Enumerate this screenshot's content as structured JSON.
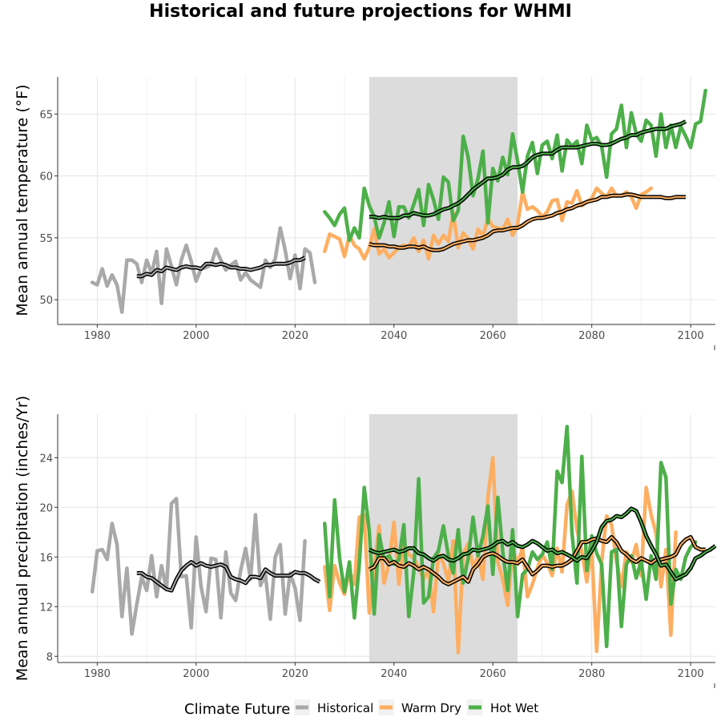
{
  "chart_data": {
    "title": "Historical and future projections for WHMI",
    "panels": [
      {
        "type": "line",
        "ylabel": "Mean annual temperature (°F)",
        "xlim": [
          1972,
          2105
        ],
        "ylim": [
          48,
          68
        ],
        "xticks": [
          1980,
          2000,
          2020,
          2040,
          2060,
          2080,
          2100
        ],
        "yticks": [
          50,
          55,
          60,
          65
        ],
        "highlight_range": [
          2035,
          2065
        ],
        "series": [
          {
            "name": "Historical",
            "x_start": 1979,
            "values": [
              51.4,
              51.2,
              52.5,
              51.1,
              52.0,
              51.2,
              49.0,
              53.2,
              53.2,
              52.9,
              51.4,
              53.2,
              52.1,
              53.9,
              49.7,
              54.1,
              52.7,
              51.2,
              53.2,
              54.4,
              53.1,
              51.5,
              52.5,
              52.6,
              52.8,
              54.1,
              53.2,
              52.4,
              52.8,
              53.1,
              51.6,
              52.2,
              51.6,
              51.3,
              51.0,
              53.2,
              52.6,
              53.3,
              55.8,
              54.0,
              51.7,
              53.6,
              50.9,
              54.1,
              53.8,
              51.4
            ]
          },
          {
            "name": "Warm Dry",
            "x_start": 2026,
            "values": [
              53.9,
              55.3,
              55.1,
              54.9,
              53.5,
              55.2,
              54.4,
              54.1,
              53.3,
              54.2,
              55.7,
              53.7,
              54.1,
              53.4,
              53.8,
              54.2,
              54.4,
              54.3,
              55.0,
              53.9,
              54.8,
              53.3,
              55.2,
              54.5,
              55.2,
              54.7,
              57.0,
              54.2,
              55.4,
              54.9,
              54.1,
              55.7,
              55.1,
              56.6,
              55.9,
              55.8,
              55.7,
              56.5,
              55.2,
              56.1,
              58.7,
              57.3,
              57.5,
              57.2,
              56.7,
              57.1,
              58.0,
              58.1,
              56.4,
              57.9,
              57.8,
              58.8,
              57.6,
              57.9,
              58.2,
              59.0,
              58.6,
              58.3,
              59.0,
              58.4,
              58.4,
              58.7,
              58.3,
              57.4,
              58.5,
              58.7,
              59.0
            ]
          },
          {
            "name": "Hot Wet",
            "x_start": 2026,
            "values": [
              57.1,
              56.6,
              56.0,
              56.9,
              57.4,
              54.8,
              55.8,
              55.0,
              59.0,
              57.6,
              56.7,
              55.0,
              56.2,
              57.9,
              55.1,
              57.5,
              57.5,
              56.6,
              57.7,
              58.9,
              56.0,
              59.3,
              58.1,
              56.5,
              59.9,
              59.5,
              56.4,
              57.2,
              63.2,
              61.5,
              58.4,
              59.8,
              62.0,
              56.2,
              60.6,
              59.6,
              61.5,
              60.1,
              63.4,
              61.2,
              58.7,
              61.6,
              62.7,
              60.2,
              62.5,
              62.8,
              61.4,
              63.3,
              60.4,
              62.9,
              62.4,
              62.8,
              61.0,
              64.1,
              62.9,
              63.1,
              62.4,
              59.9,
              63.4,
              63.8,
              65.7,
              62.3,
              65.1,
              63.4,
              62.8,
              64.5,
              64.1,
              61.6,
              65.0,
              62.3,
              64.1,
              62.3,
              64.0,
              63.2,
              62.3,
              64.2,
              64.4,
              66.9
            ]
          },
          {
            "name": "Historical",
            "smoothed": true,
            "x_start": 1988,
            "values": [
              51.9,
              51.9,
              52.1,
              52.0,
              52.4,
              52.3,
              52.6,
              52.5,
              52.4,
              52.6,
              52.7,
              52.6,
              52.6,
              52.5,
              52.9,
              52.9,
              52.8,
              52.9,
              52.8,
              52.6,
              52.6,
              52.5,
              52.5,
              52.4,
              52.5,
              52.6,
              52.8,
              52.8,
              52.9,
              52.9,
              52.9,
              53.0,
              53.2,
              53.2,
              53.4
            ]
          },
          {
            "name": "Warm Dry",
            "smoothed": true,
            "x_start": 2035,
            "values": [
              54.5,
              54.4,
              54.4,
              54.4,
              54.3,
              54.3,
              54.2,
              54.2,
              54.3,
              54.3,
              54.2,
              54.3,
              54.1,
              54.0,
              54.0,
              54.1,
              54.3,
              54.5,
              54.6,
              54.7,
              54.8,
              54.8,
              54.9,
              55.0,
              55.2,
              55.5,
              55.6,
              55.6,
              55.7,
              55.8,
              55.8,
              56.0,
              56.3,
              56.5,
              56.6,
              56.6,
              56.7,
              56.8,
              57.0,
              57.1,
              57.3,
              57.4,
              57.6,
              57.7,
              57.9,
              58.0,
              58.1,
              58.3,
              58.3,
              58.4,
              58.4,
              58.4,
              58.5,
              58.5,
              58.4,
              58.3,
              58.3,
              58.3,
              58.3,
              58.3,
              58.2,
              58.2,
              58.3,
              58.3,
              58.3
            ]
          },
          {
            "name": "Hot Wet",
            "smoothed": true,
            "x_start": 2035,
            "values": [
              56.7,
              56.7,
              56.6,
              56.7,
              56.6,
              56.6,
              56.6,
              56.8,
              56.8,
              57.0,
              56.9,
              56.8,
              56.8,
              56.9,
              57.1,
              57.3,
              57.4,
              57.6,
              57.8,
              58.1,
              58.5,
              58.9,
              59.2,
              59.5,
              59.8,
              59.8,
              59.9,
              60.1,
              60.5,
              60.7,
              60.7,
              60.8,
              61.1,
              61.5,
              61.7,
              61.8,
              61.8,
              61.8,
              62.1,
              62.3,
              62.3,
              62.3,
              62.3,
              62.4,
              62.5,
              62.6,
              62.6,
              62.5,
              62.5,
              62.6,
              62.8,
              63.0,
              63.1,
              63.3,
              63.3,
              63.5,
              63.6,
              63.7,
              63.8,
              63.8,
              63.8,
              64.0,
              64.1,
              64.2,
              64.4
            ]
          }
        ]
      },
      {
        "type": "line",
        "ylabel": "Mean annual precipitation (inches/Yr)",
        "xlim": [
          1972,
          2105
        ],
        "ylim": [
          7.5,
          27.5
        ],
        "xticks": [
          1980,
          2000,
          2020,
          2040,
          2060,
          2080,
          2100
        ],
        "yticks": [
          8,
          12,
          16,
          20,
          24
        ],
        "highlight_range": [
          2035,
          2065
        ],
        "series": [
          {
            "name": "Historical",
            "x_start": 1979,
            "values": [
              13.2,
              16.5,
              16.6,
              15.8,
              18.7,
              17.0,
              11.2,
              15.1,
              9.8,
              12.2,
              14.4,
              13.3,
              16.1,
              12.8,
              15.3,
              13.4,
              20.3,
              20.7,
              14.4,
              14.5,
              10.3,
              17.6,
              13.6,
              11.6,
              15.9,
              15.8,
              11.1,
              16.4,
              13.1,
              12.5,
              14.9,
              16.7,
              14.2,
              19.4,
              13.7,
              14.6,
              11.0,
              16.0,
              17.0,
              11.4,
              14.7,
              13.5,
              10.9,
              17.3
            ]
          },
          {
            "name": "Warm Dry",
            "x_start": 2026,
            "values": [
              15.2,
              11.7,
              15.3,
              13.9,
              13.0,
              14.9,
              13.8,
              19.2,
              19.4,
              11.5,
              15.3,
              18.5,
              13.9,
              15.5,
              18.8,
              13.8,
              17.0,
              16.2,
              15.9,
              15.2,
              14.2,
              15.0,
              11.6,
              16.3,
              15.5,
              14.0,
              17.3,
              8.3,
              16.2,
              17.1,
              15.2,
              16.0,
              14.2,
              20.8,
              24.0,
              15.6,
              14.2,
              12.1,
              16.6,
              15.4,
              16.8,
              12.8,
              13.8,
              15.1,
              16.2,
              15.5,
              14.5,
              16.7,
              14.8,
              20.2,
              21.3,
              18.2,
              16.4,
              14.0,
              16.6,
              8.4,
              15.6,
              19.3,
              18.6,
              15.7,
              13.6,
              16.4,
              15.6,
              17.0,
              14.5,
              21.6,
              19.4,
              17.9,
              13.6,
              16.6,
              9.7,
              18.0
            ]
          },
          {
            "name": "Hot Wet",
            "x_start": 2026,
            "values": [
              18.7,
              12.8,
              20.6,
              15.9,
              13.2,
              15.6,
              11.1,
              15.4,
              21.6,
              18.1,
              11.4,
              17.8,
              15.8,
              16.1,
              15.4,
              15.8,
              18.6,
              11.2,
              14.8,
              22.3,
              12.3,
              12.8,
              15.9,
              16.5,
              18.5,
              16.1,
              14.7,
              18.2,
              13.9,
              15.9,
              19.2,
              16.1,
              17.7,
              20.1,
              14.6,
              20.8,
              16.4,
              13.3,
              18.2,
              11.2,
              14.6,
              15.0,
              16.4,
              15.8,
              16.2,
              17.2,
              15.0,
              22.9,
              22.0,
              26.5,
              17.9,
              13.9,
              24.1,
              14.9,
              17.7,
              16.3,
              15.4,
              8.8,
              16.4,
              16.6,
              10.4,
              15.4,
              16.1,
              14.3,
              15.7,
              12.6,
              16.1,
              14.2,
              23.6,
              22.4,
              12.2,
              15.0,
              14.2,
              16.0,
              16.8,
              17.2
            ]
          },
          {
            "name": "Historical",
            "smoothed": true,
            "x_start": 1988,
            "values": [
              14.7,
              14.7,
              14.4,
              14.3,
              14.0,
              13.7,
              13.4,
              13.3,
              14.2,
              14.9,
              15.3,
              15.6,
              15.3,
              15.5,
              15.3,
              15.2,
              15.3,
              15.4,
              15.2,
              14.4,
              14.2,
              14.1,
              13.9,
              14.4,
              14.4,
              14.3,
              15.0,
              14.7,
              14.5,
              14.5,
              14.5,
              14.5,
              14.8,
              14.7,
              14.7,
              14.5,
              14.2,
              14.0
            ]
          },
          {
            "name": "Warm Dry",
            "smoothed": true,
            "x_start": 2035,
            "values": [
              15.0,
              15.2,
              15.9,
              15.9,
              15.4,
              15.6,
              15.3,
              15.2,
              15.5,
              15.3,
              15.0,
              15.2,
              15.0,
              14.7,
              14.4,
              14.0,
              13.8,
              14.0,
              14.2,
              14.4,
              14.0,
              15.0,
              15.4,
              16.0,
              16.2,
              16.3,
              16.1,
              15.8,
              15.6,
              15.6,
              15.5,
              15.8,
              15.2,
              14.6,
              14.9,
              15.3,
              15.3,
              15.2,
              15.3,
              15.3,
              15.5,
              15.8,
              16.5,
              17.2,
              17.2,
              17.4,
              17.5,
              17.3,
              17.2,
              17.6,
              17.2,
              16.5,
              16.2,
              15.8,
              15.6,
              15.9,
              15.7,
              15.5,
              15.8,
              15.8,
              15.9,
              16.0,
              16.2,
              17.0,
              17.4,
              17.6,
              16.8,
              16.6,
              16.6
            ]
          },
          {
            "name": "Hot Wet",
            "smoothed": true,
            "x_start": 2035,
            "values": [
              16.6,
              16.4,
              16.3,
              16.4,
              16.5,
              16.6,
              16.4,
              16.5,
              16.7,
              16.7,
              16.3,
              16.2,
              15.9,
              15.7,
              16.0,
              16.1,
              15.8,
              15.7,
              15.9,
              16.2,
              16.3,
              16.6,
              16.5,
              16.6,
              16.7,
              16.9,
              17.2,
              17.3,
              17.0,
              17.2,
              16.9,
              16.8,
              17.0,
              17.3,
              17.1,
              16.8,
              16.5,
              16.6,
              16.3,
              16.4,
              16.2,
              16.0,
              15.7,
              16.0,
              15.9,
              16.5,
              17.2,
              18.4,
              18.9,
              19.0,
              19.3,
              19.2,
              19.5,
              19.9,
              19.7,
              18.8,
              17.7,
              16.9,
              16.2,
              15.3,
              15.4,
              14.8,
              14.2,
              14.4,
              14.6,
              15.1,
              15.9,
              16.1,
              16.4,
              16.6,
              16.9
            ]
          }
        ]
      }
    ],
    "legend": {
      "title": "Climate Future",
      "placement": "bottom",
      "entries": [
        "Historical",
        "Warm Dry",
        "Hot Wet"
      ]
    }
  },
  "colors": {
    "Historical": "#a9a9a9",
    "Warm Dry": "#fdae61",
    "Hot Wet": "#4daf4a",
    "highlight": "#dcdcdc",
    "grid": "#e5e5e5",
    "smoothed_outline": "#000000"
  }
}
